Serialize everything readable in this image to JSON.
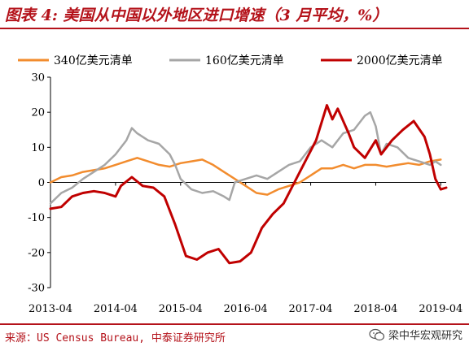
{
  "title": "图表 4: 美国从中国以外地区进口增速（3 月平均，%）",
  "source": "来源：US Census Bureau, 中泰证券研究所",
  "watermark": "梁中华宏观研究",
  "chart_data": {
    "type": "line",
    "ylim": [
      -30,
      30
    ],
    "yticks": [
      -30,
      -20,
      -10,
      0,
      10,
      20,
      30
    ],
    "xticks": [
      "2013-04",
      "2014-04",
      "2015-04",
      "2016-04",
      "2017-04",
      "2018-04",
      "2019-04"
    ],
    "xrange": [
      "2013-04",
      "2019-05"
    ],
    "legend_position": "top",
    "series": [
      {
        "name": "340亿美元清单",
        "color": "#f28c2e",
        "points": [
          [
            "2013-04",
            0
          ],
          [
            "2013-06",
            1.5
          ],
          [
            "2013-08",
            2
          ],
          [
            "2013-10",
            3
          ],
          [
            "2013-12",
            3.5
          ],
          [
            "2014-02",
            4
          ],
          [
            "2014-04",
            5
          ],
          [
            "2014-06",
            6
          ],
          [
            "2014-08",
            7
          ],
          [
            "2014-10",
            6
          ],
          [
            "2014-12",
            5
          ],
          [
            "2015-02",
            4.5
          ],
          [
            "2015-04",
            5.5
          ],
          [
            "2015-06",
            6
          ],
          [
            "2015-08",
            6.5
          ],
          [
            "2015-10",
            5
          ],
          [
            "2015-12",
            3
          ],
          [
            "2016-02",
            1
          ],
          [
            "2016-04",
            -1
          ],
          [
            "2016-06",
            -3
          ],
          [
            "2016-08",
            -3.5
          ],
          [
            "2016-10",
            -2
          ],
          [
            "2016-12",
            -1
          ],
          [
            "2017-02",
            0
          ],
          [
            "2017-04",
            2
          ],
          [
            "2017-06",
            4
          ],
          [
            "2017-08",
            4
          ],
          [
            "2017-10",
            5
          ],
          [
            "2017-12",
            4
          ],
          [
            "2018-02",
            5
          ],
          [
            "2018-04",
            5
          ],
          [
            "2018-06",
            4.5
          ],
          [
            "2018-08",
            5
          ],
          [
            "2018-10",
            5.5
          ],
          [
            "2018-12",
            5
          ],
          [
            "2019-02",
            6
          ],
          [
            "2019-04",
            6.5
          ]
        ]
      },
      {
        "name": "160亿美元清单",
        "color": "#a6a6a6",
        "points": [
          [
            "2013-04",
            -6
          ],
          [
            "2013-06",
            -3
          ],
          [
            "2013-08",
            -1.5
          ],
          [
            "2013-10",
            1
          ],
          [
            "2013-12",
            3
          ],
          [
            "2014-02",
            5
          ],
          [
            "2014-04",
            8
          ],
          [
            "2014-06",
            12
          ],
          [
            "2014-07",
            15.5
          ],
          [
            "2014-08",
            14
          ],
          [
            "2014-10",
            12
          ],
          [
            "2014-12",
            11
          ],
          [
            "2015-02",
            8
          ],
          [
            "2015-03",
            5
          ],
          [
            "2015-04",
            1
          ],
          [
            "2015-06",
            -2
          ],
          [
            "2015-08",
            -3
          ],
          [
            "2015-10",
            -2.5
          ],
          [
            "2015-12",
            -4
          ],
          [
            "2016-01",
            -5
          ],
          [
            "2016-02",
            0
          ],
          [
            "2016-04",
            1
          ],
          [
            "2016-06",
            2
          ],
          [
            "2016-08",
            1
          ],
          [
            "2016-10",
            3
          ],
          [
            "2016-12",
            5
          ],
          [
            "2017-02",
            6
          ],
          [
            "2017-04",
            10
          ],
          [
            "2017-06",
            12
          ],
          [
            "2017-08",
            10
          ],
          [
            "2017-10",
            14
          ],
          [
            "2017-12",
            15
          ],
          [
            "2018-02",
            19
          ],
          [
            "2018-03",
            20
          ],
          [
            "2018-04",
            16
          ],
          [
            "2018-05",
            8
          ],
          [
            "2018-06",
            11
          ],
          [
            "2018-08",
            10
          ],
          [
            "2018-10",
            7
          ],
          [
            "2018-12",
            6
          ],
          [
            "2019-02",
            5
          ],
          [
            "2019-03",
            6
          ],
          [
            "2019-04",
            5
          ]
        ]
      },
      {
        "name": "2000亿美元清单",
        "color": "#c00000",
        "points": [
          [
            "2013-04",
            -7.5
          ],
          [
            "2013-06",
            -7
          ],
          [
            "2013-08",
            -4
          ],
          [
            "2013-10",
            -3
          ],
          [
            "2013-12",
            -2.5
          ],
          [
            "2014-02",
            -3
          ],
          [
            "2014-04",
            -4
          ],
          [
            "2014-05",
            -1
          ],
          [
            "2014-07",
            1.5
          ],
          [
            "2014-09",
            -1
          ],
          [
            "2014-11",
            -1.5
          ],
          [
            "2015-01",
            -4
          ],
          [
            "2015-03",
            -12
          ],
          [
            "2015-05",
            -21
          ],
          [
            "2015-07",
            -22
          ],
          [
            "2015-09",
            -20
          ],
          [
            "2015-11",
            -19
          ],
          [
            "2016-01",
            -23
          ],
          [
            "2016-03",
            -22.5
          ],
          [
            "2016-05",
            -20
          ],
          [
            "2016-07",
            -13
          ],
          [
            "2016-09",
            -9
          ],
          [
            "2016-11",
            -6
          ],
          [
            "2017-01",
            0
          ],
          [
            "2017-03",
            6
          ],
          [
            "2017-05",
            12
          ],
          [
            "2017-07",
            22
          ],
          [
            "2017-08",
            18
          ],
          [
            "2017-09",
            21
          ],
          [
            "2017-11",
            14
          ],
          [
            "2017-12",
            10
          ],
          [
            "2018-02",
            7
          ],
          [
            "2018-04",
            12
          ],
          [
            "2018-05",
            8
          ],
          [
            "2018-07",
            12
          ],
          [
            "2018-09",
            15
          ],
          [
            "2018-11",
            17.5
          ],
          [
            "2019-01",
            13
          ],
          [
            "2019-02",
            8
          ],
          [
            "2019-03",
            1
          ],
          [
            "2019-04",
            -2
          ],
          [
            "2019-05",
            -1.5
          ]
        ]
      }
    ]
  }
}
